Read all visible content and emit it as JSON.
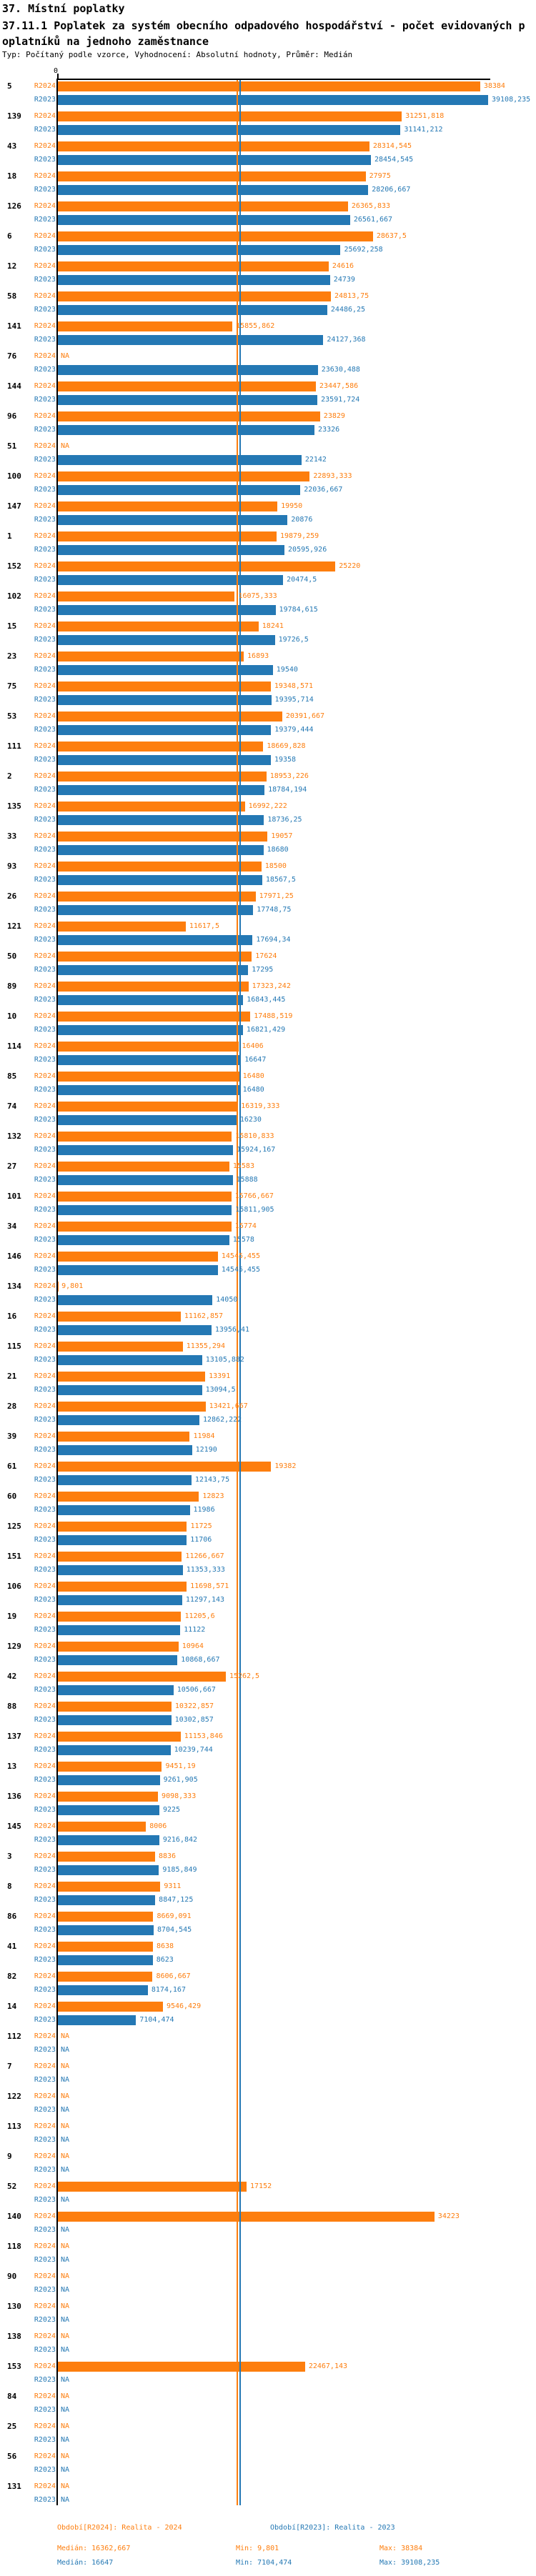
{
  "header": {
    "title": "37. Místní poplatky",
    "subtitle_line1": "37.11.1 Poplatek za systém obecního odpadového hospodářství - počet evidovaných p",
    "subtitle_line2": "oplatníků na jednoho zaměstnance",
    "meta": "Typ: Počítaný podle vzorce, Vyhodnocení: Absolutní hodnoty, Průměr: Medián"
  },
  "colors": {
    "r2024": "#fd7e0e",
    "r2023": "#2478b4",
    "axis": "#000000"
  },
  "chart_data": {
    "type": "bar",
    "orientation": "horizontal",
    "axis_origin_label": "0",
    "na_label": "NA",
    "xmax": 39108.235,
    "series_labels": {
      "r2024": "R2024",
      "r2023": "R2023"
    },
    "medians": {
      "r2024": "16362,667",
      "r2023": "16647"
    },
    "rows": [
      {
        "id": "5",
        "r2024": "38384",
        "r2023": "39108,235"
      },
      {
        "id": "139",
        "r2024": "31251,818",
        "r2023": "31141,212"
      },
      {
        "id": "43",
        "r2024": "28314,545",
        "r2023": "28454,545"
      },
      {
        "id": "18",
        "r2024": "27975",
        "r2023": "28206,667"
      },
      {
        "id": "126",
        "r2024": "26365,833",
        "r2023": "26561,667"
      },
      {
        "id": "6",
        "r2024": "28637,5",
        "r2023": "25692,258"
      },
      {
        "id": "12",
        "r2024": "24616",
        "r2023": "24739"
      },
      {
        "id": "58",
        "r2024": "24813,75",
        "r2023": "24486,25"
      },
      {
        "id": "141",
        "r2024": "15855,862",
        "r2023": "24127,368"
      },
      {
        "id": "76",
        "r2024": "NA",
        "r2023": "23630,488"
      },
      {
        "id": "144",
        "r2024": "23447,586",
        "r2023": "23591,724"
      },
      {
        "id": "96",
        "r2024": "23829",
        "r2023": "23326"
      },
      {
        "id": "51",
        "r2024": "NA",
        "r2023": "22142"
      },
      {
        "id": "100",
        "r2024": "22893,333",
        "r2023": "22036,667"
      },
      {
        "id": "147",
        "r2024": "19950",
        "r2023": "20876"
      },
      {
        "id": "1",
        "r2024": "19879,259",
        "r2023": "20595,926"
      },
      {
        "id": "152",
        "r2024": "25220",
        "r2023": "20474,5"
      },
      {
        "id": "102",
        "r2024": "16075,333",
        "r2023": "19784,615"
      },
      {
        "id": "15",
        "r2024": "18241",
        "r2023": "19726,5"
      },
      {
        "id": "23",
        "r2024": "16893",
        "r2023": "19540"
      },
      {
        "id": "75",
        "r2024": "19348,571",
        "r2023": "19395,714"
      },
      {
        "id": "53",
        "r2024": "20391,667",
        "r2023": "19379,444"
      },
      {
        "id": "111",
        "r2024": "18669,828",
        "r2023": "19358"
      },
      {
        "id": "2",
        "r2024": "18953,226",
        "r2023": "18784,194"
      },
      {
        "id": "135",
        "r2024": "16992,222",
        "r2023": "18736,25"
      },
      {
        "id": "33",
        "r2024": "19057",
        "r2023": "18680"
      },
      {
        "id": "93",
        "r2024": "18500",
        "r2023": "18567,5"
      },
      {
        "id": "26",
        "r2024": "17971,25",
        "r2023": "17748,75"
      },
      {
        "id": "121",
        "r2024": "11617,5",
        "r2023": "17694,34"
      },
      {
        "id": "50",
        "r2024": "17624",
        "r2023": "17295"
      },
      {
        "id": "89",
        "r2024": "17323,242",
        "r2023": "16843,445"
      },
      {
        "id": "10",
        "r2024": "17488,519",
        "r2023": "16821,429"
      },
      {
        "id": "114",
        "r2024": "16406",
        "r2023": "16647"
      },
      {
        "id": "85",
        "r2024": "16480",
        "r2023": "16480"
      },
      {
        "id": "74",
        "r2024": "16319,333",
        "r2023": "16230"
      },
      {
        "id": "132",
        "r2024": "15810,833",
        "r2023": "15924,167"
      },
      {
        "id": "27",
        "r2024": "15583",
        "r2023": "15888"
      },
      {
        "id": "101",
        "r2024": "15766,667",
        "r2023": "15811,905"
      },
      {
        "id": "34",
        "r2024": "15774",
        "r2023": "15578"
      },
      {
        "id": "146",
        "r2024": "14545,455",
        "r2023": "14545,455"
      },
      {
        "id": "134",
        "r2024": "9,801",
        "r2023": "14050"
      },
      {
        "id": "16",
        "r2024": "11162,857",
        "r2023": "13956,41"
      },
      {
        "id": "115",
        "r2024": "11355,294",
        "r2023": "13105,882"
      },
      {
        "id": "21",
        "r2024": "13391",
        "r2023": "13094,5"
      },
      {
        "id": "28",
        "r2024": "13421,667",
        "r2023": "12862,222"
      },
      {
        "id": "39",
        "r2024": "11984",
        "r2023": "12190"
      },
      {
        "id": "61",
        "r2024": "19382",
        "r2023": "12143,75"
      },
      {
        "id": "60",
        "r2024": "12823",
        "r2023": "11986"
      },
      {
        "id": "125",
        "r2024": "11725",
        "r2023": "11706"
      },
      {
        "id": "151",
        "r2024": "11266,667",
        "r2023": "11353,333"
      },
      {
        "id": "106",
        "r2024": "11698,571",
        "r2023": "11297,143"
      },
      {
        "id": "19",
        "r2024": "11205,6",
        "r2023": "11122"
      },
      {
        "id": "129",
        "r2024": "10964",
        "r2023": "10868,667"
      },
      {
        "id": "42",
        "r2024": "15262,5",
        "r2023": "10506,667"
      },
      {
        "id": "88",
        "r2024": "10322,857",
        "r2023": "10302,857"
      },
      {
        "id": "137",
        "r2024": "11153,846",
        "r2023": "10239,744"
      },
      {
        "id": "13",
        "r2024": "9451,19",
        "r2023": "9261,905"
      },
      {
        "id": "136",
        "r2024": "9098,333",
        "r2023": "9225"
      },
      {
        "id": "145",
        "r2024": "8006",
        "r2023": "9216,842"
      },
      {
        "id": "3",
        "r2024": "8836",
        "r2023": "9185,849"
      },
      {
        "id": "8",
        "r2024": "9311",
        "r2023": "8847,125"
      },
      {
        "id": "86",
        "r2024": "8669,091",
        "r2023": "8704,545"
      },
      {
        "id": "41",
        "r2024": "8638",
        "r2023": "8623"
      },
      {
        "id": "82",
        "r2024": "8606,667",
        "r2023": "8174,167"
      },
      {
        "id": "14",
        "r2024": "9546,429",
        "r2023": "7104,474"
      },
      {
        "id": "112",
        "r2024": "NA",
        "r2023": "NA"
      },
      {
        "id": "7",
        "r2024": "NA",
        "r2023": "NA"
      },
      {
        "id": "122",
        "r2024": "NA",
        "r2023": "NA"
      },
      {
        "id": "113",
        "r2024": "NA",
        "r2023": "NA"
      },
      {
        "id": "9",
        "r2024": "NA",
        "r2023": "NA"
      },
      {
        "id": "52",
        "r2024": "17152",
        "r2023": "NA"
      },
      {
        "id": "140",
        "r2024": "34223",
        "r2023": "NA"
      },
      {
        "id": "118",
        "r2024": "NA",
        "r2023": "NA"
      },
      {
        "id": "90",
        "r2024": "NA",
        "r2023": "NA"
      },
      {
        "id": "130",
        "r2024": "NA",
        "r2023": "NA"
      },
      {
        "id": "138",
        "r2024": "NA",
        "r2023": "NA"
      },
      {
        "id": "153",
        "r2024": "22467,143",
        "r2023": "NA"
      },
      {
        "id": "84",
        "r2024": "NA",
        "r2023": "NA"
      },
      {
        "id": "25",
        "r2024": "NA",
        "r2023": "NA"
      },
      {
        "id": "56",
        "r2024": "NA",
        "r2023": "NA"
      },
      {
        "id": "131",
        "r2024": "NA",
        "r2023": "NA"
      }
    ]
  },
  "legend": {
    "r2024": "Období[R2024]: Realita - 2024",
    "r2023": "Období[R2023]: Realita - 2023"
  },
  "stats": {
    "r2024": {
      "median": "Medián: 16362,667",
      "min": "Min: 9,801",
      "max": "Max: 38384"
    },
    "r2023": {
      "median": "Medián: 16647",
      "min": "Min: 7104,474",
      "max": "Max: 39108,235"
    }
  }
}
